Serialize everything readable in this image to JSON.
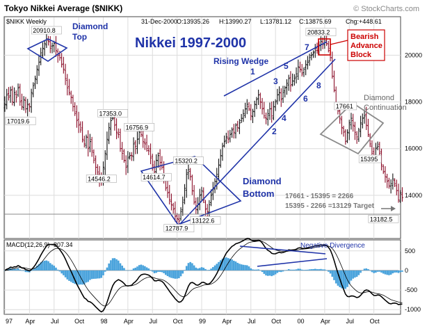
{
  "chart_data": {
    "type": "ohlc",
    "title": "Tokyo Nikkei Average ($NIKK)",
    "symbol_label": "$NIKK Weekly",
    "header_stats": {
      "date": "31-Dec-2000",
      "open": "O:13935.26",
      "high": "H:13990.27",
      "low": "L:13781.12",
      "close": "C:13875.69",
      "change": "Chg:+448.61"
    },
    "source": "© StockCharts.com",
    "big_title": "Nikkei 1997-2000",
    "y_ticks_price": [
      14000,
      16000,
      18000,
      20000
    ],
    "y_ticks_macd": [
      500,
      0,
      -500,
      -1000
    ],
    "ylim_price": [
      12150,
      21650
    ],
    "ylim_macd": [
      -1120,
      780
    ],
    "x_ticks": [
      "97",
      "Apr",
      "Jul",
      "Oct",
      "98",
      "Apr",
      "Jul",
      "Oct",
      "99",
      "Apr",
      "Jul",
      "Oct",
      "00",
      "Apr",
      "Jul",
      "Oct"
    ],
    "x_tick_weeks": [
      0,
      13,
      26,
      39,
      52,
      65,
      78,
      91,
      104,
      117,
      130,
      143,
      156,
      169,
      182,
      195
    ],
    "weeks": 209,
    "closes": [
      17900,
      18300,
      18200,
      18500,
      18000,
      18400,
      18200,
      18600,
      18000,
      17800,
      18100,
      17700,
      17900,
      17800,
      18400,
      18700,
      19000,
      19400,
      19700,
      20100,
      20300,
      20500,
      20700,
      20600,
      20300,
      20400,
      20500,
      20200,
      20000,
      19900,
      19600,
      19400,
      19000,
      18600,
      18400,
      18200,
      17800,
      17500,
      17200,
      17000,
      16800,
      16400,
      16200,
      16500,
      16000,
      16300,
      15900,
      15500,
      15200,
      15000,
      14700,
      14600,
      15200,
      15800,
      16400,
      16900,
      17200,
      17300,
      17000,
      16700,
      16600,
      16000,
      15800,
      15500,
      15200,
      15600,
      15700,
      15700,
      16200,
      16100,
      16400,
      16700,
      16600,
      16300,
      16200,
      16000,
      15900,
      15600,
      15300,
      15000,
      15500,
      15700,
      15400,
      15200,
      14800,
      14300,
      14100,
      13800,
      13600,
      13400,
      13100,
      13000,
      12900,
      13300,
      13700,
      14300,
      14900,
      15100,
      14800,
      14200,
      13700,
      13400,
      13600,
      14000,
      14200,
      13800,
      13400,
      13300,
      13600,
      14000,
      14300,
      14600,
      14900,
      15300,
      15700,
      16100,
      16300,
      16500,
      16400,
      16600,
      16800,
      16700,
      17000,
      16900,
      17100,
      17300,
      17500,
      17700,
      17900,
      17700,
      17400,
      17600,
      17900,
      18100,
      18300,
      18000,
      17700,
      17400,
      17300,
      17500,
      17700,
      17400,
      17800,
      18000,
      18300,
      18400,
      18100,
      18400,
      18600,
      18800,
      19000,
      18700,
      18900,
      19000,
      19200,
      19500,
      19400,
      19200,
      19400,
      19600,
      19700,
      19900,
      20000,
      20100,
      20300,
      20200,
      20400,
      20600,
      20500,
      20700,
      20500,
      20200,
      19900,
      19100,
      18500,
      17900,
      17600,
      17300,
      16900,
      16700,
      16300,
      16700,
      17100,
      17300,
      17000,
      16700,
      16500,
      16800,
      17100,
      17300,
      17400,
      17000,
      16600,
      16200,
      15800,
      15700,
      16000,
      16100,
      15800,
      15300,
      15000,
      14800,
      14600,
      14400,
      14500,
      14700,
      14500,
      14200,
      13800,
      14100,
      13900
    ],
    "series": [
      {
        "name": "MACD(12,26,9)",
        "label": "MACD(12,26,9) -807.34"
      }
    ],
    "price_labels": [
      {
        "text": "20910.8",
        "week": 22,
        "value": 20910.8
      },
      {
        "text": "17019.6",
        "week": 0,
        "value": 17019.6
      },
      {
        "text": "17353.0",
        "week": 57,
        "value": 17353.0
      },
      {
        "text": "14546.2",
        "week": 51,
        "value": 14546.2
      },
      {
        "text": "16756.9",
        "week": 71,
        "value": 16756.9
      },
      {
        "text": "15320.2",
        "week": 97,
        "value": 15320.2
      },
      {
        "text": "14614.7",
        "week": 80,
        "value": 14614.7
      },
      {
        "text": "12787.9",
        "week": 92,
        "value": 12787.9
      },
      {
        "text": "13122.6",
        "week": 106,
        "value": 13122.6
      },
      {
        "text": "20833.2",
        "week": 167,
        "value": 20833.2
      },
      {
        "text": "17661",
        "week": 180,
        "value": 17661
      },
      {
        "text": "15395",
        "week": 193,
        "value": 15395
      },
      {
        "text": "13182.5",
        "week": 206,
        "value": 13182.5
      }
    ],
    "annotations": {
      "diamond_top": "Diamond Top",
      "rising_wedge": "Rising Wedge",
      "diamond_bottom": "Diamond Bottom",
      "bearish_block": "Bearish Advance Block",
      "diamond_continuation": "Diamond Continuation",
      "target_line1": "17661 - 15395 = 2266",
      "target_line2": "15395 - 2266 =13129 Target",
      "negative_divergence": "Negative Divergence",
      "wave_numbers": [
        "1",
        "2",
        "3",
        "4",
        "5",
        "6",
        "7",
        "8"
      ]
    },
    "colors": {
      "up_bar": "#111111",
      "down_bar": "#8b0f2a",
      "annotation": "#1f33a8",
      "highlight": "#cc0000",
      "macd_hist": "#4aa3dc",
      "pattern_gray": "#8a8a8a"
    }
  }
}
